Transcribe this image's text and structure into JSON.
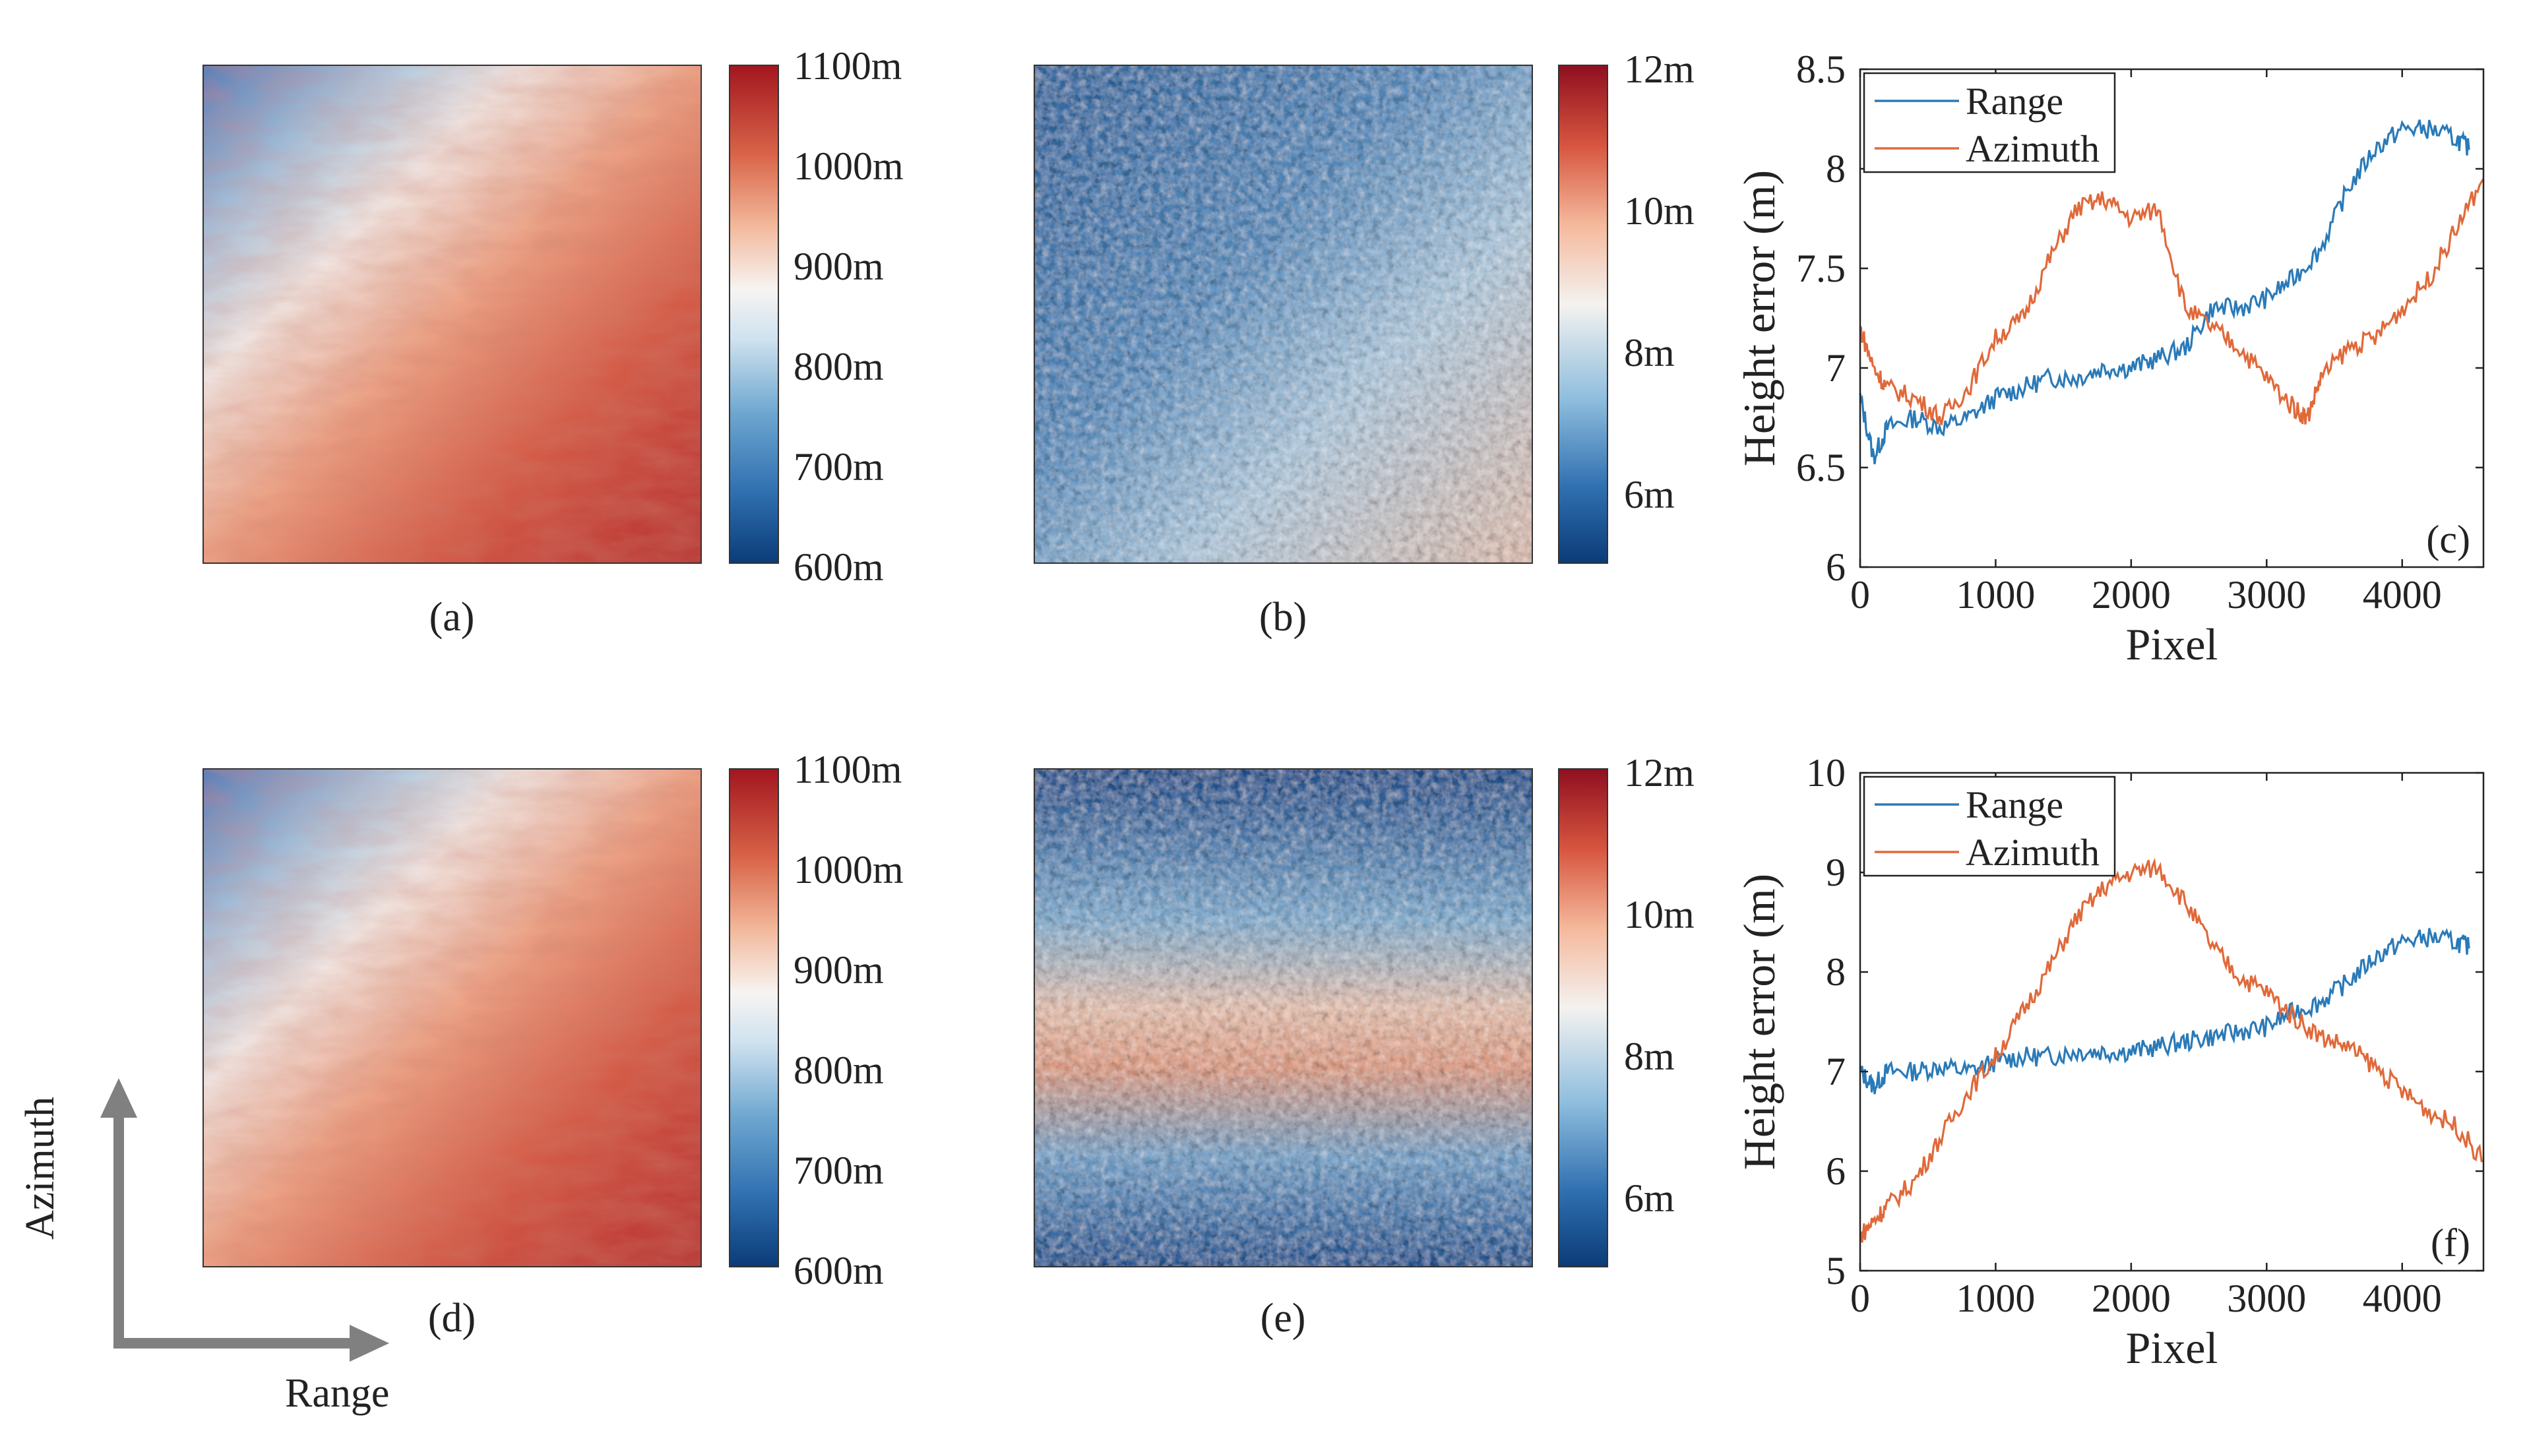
{
  "captions": {
    "a": "(a)",
    "b": "(b)",
    "c": "(c)",
    "d": "(d)",
    "e": "(e)",
    "f": "(f)"
  },
  "dem_colorbar": {
    "ticks": [
      "1100m",
      "1000m",
      "900m",
      "800m",
      "700m",
      "600m"
    ]
  },
  "err_colorbar": {
    "ticks": [
      "12m",
      "10m",
      "8m",
      "6m"
    ]
  },
  "arrows": {
    "vertical_label": "Azimuth",
    "horizontal_label": "Range"
  },
  "colors": {
    "range": "#2a7ab8",
    "azimuth": "#e0693a"
  },
  "chart_data": [
    {
      "type": "line",
      "panel": "(c)",
      "title": "",
      "xlabel": "Pixel",
      "ylabel": "Height error (m)",
      "xlim": [
        0,
        4600
      ],
      "ylim": [
        6,
        8.5
      ],
      "xticks": [
        0,
        1000,
        2000,
        3000,
        4000
      ],
      "xtick_labels": [
        "0",
        "1000",
        "2000",
        "3000",
        "4000"
      ],
      "yticks": [
        6,
        6.5,
        7,
        7.5,
        8,
        8.5
      ],
      "ytick_labels": [
        "6",
        "6.5",
        "7",
        "7.5",
        "8",
        "8.5"
      ],
      "legend": "top-left",
      "series": [
        {
          "name": "Range",
          "x": [
            0,
            100,
            200,
            400,
            600,
            800,
            1000,
            1200,
            1400,
            1600,
            1800,
            2000,
            2200,
            2400,
            2600,
            2800,
            3000,
            3200,
            3400,
            3600,
            3800,
            4000,
            4200,
            4400,
            4500
          ],
          "values": [
            6.85,
            6.55,
            6.7,
            6.75,
            6.7,
            6.75,
            6.85,
            6.9,
            6.95,
            6.95,
            7.0,
            7.0,
            7.05,
            7.1,
            7.3,
            7.3,
            7.35,
            7.45,
            7.6,
            7.9,
            8.1,
            8.2,
            8.2,
            8.15,
            8.1
          ]
        },
        {
          "name": "Azimuth",
          "x": [
            0,
            100,
            200,
            400,
            600,
            800,
            1000,
            1200,
            1400,
            1600,
            1800,
            2000,
            2200,
            2400,
            2600,
            2800,
            3000,
            3200,
            3300,
            3400,
            3600,
            3800,
            4000,
            4200,
            4400,
            4600
          ],
          "values": [
            7.2,
            7.0,
            6.9,
            6.85,
            6.75,
            6.9,
            7.15,
            7.25,
            7.55,
            7.8,
            7.85,
            7.75,
            7.8,
            7.3,
            7.2,
            7.1,
            6.95,
            6.8,
            6.75,
            6.95,
            7.1,
            7.15,
            7.3,
            7.45,
            7.7,
            7.95
          ]
        }
      ]
    },
    {
      "type": "line",
      "panel": "(f)",
      "title": "",
      "xlabel": "Pixel",
      "ylabel": "Height error (m)",
      "xlim": [
        0,
        4600
      ],
      "ylim": [
        5,
        10
      ],
      "xticks": [
        0,
        1000,
        2000,
        3000,
        4000
      ],
      "xtick_labels": [
        "0",
        "1000",
        "2000",
        "3000",
        "4000"
      ],
      "yticks": [
        5,
        6,
        7,
        8,
        9,
        10
      ],
      "ytick_labels": [
        "5",
        "6",
        "7",
        "8",
        "9",
        "10"
      ],
      "legend": "top-left",
      "series": [
        {
          "name": "Range",
          "x": [
            0,
            100,
            200,
            400,
            600,
            800,
            1000,
            1200,
            1400,
            1600,
            1800,
            2000,
            2200,
            2400,
            2600,
            2800,
            3000,
            3200,
            3400,
            3600,
            3800,
            4000,
            4200,
            4400,
            4500
          ],
          "values": [
            7.0,
            6.85,
            7.0,
            7.0,
            7.05,
            7.0,
            7.1,
            7.15,
            7.15,
            7.2,
            7.2,
            7.2,
            7.25,
            7.3,
            7.35,
            7.4,
            7.45,
            7.6,
            7.7,
            7.9,
            8.15,
            8.3,
            8.35,
            8.3,
            8.25
          ]
        },
        {
          "name": "Azimuth",
          "x": [
            0,
            100,
            200,
            400,
            600,
            800,
            1000,
            1200,
            1400,
            1600,
            1800,
            2000,
            2200,
            2400,
            2600,
            2800,
            3000,
            3200,
            3400,
            3600,
            3800,
            4000,
            4200,
            4400,
            4600
          ],
          "values": [
            5.35,
            5.5,
            5.65,
            5.9,
            6.35,
            6.8,
            7.15,
            7.6,
            8.05,
            8.55,
            8.85,
            9.0,
            9.05,
            8.7,
            8.25,
            7.95,
            7.8,
            7.55,
            7.35,
            7.25,
            7.05,
            6.8,
            6.6,
            6.45,
            6.1
          ]
        }
      ]
    }
  ]
}
